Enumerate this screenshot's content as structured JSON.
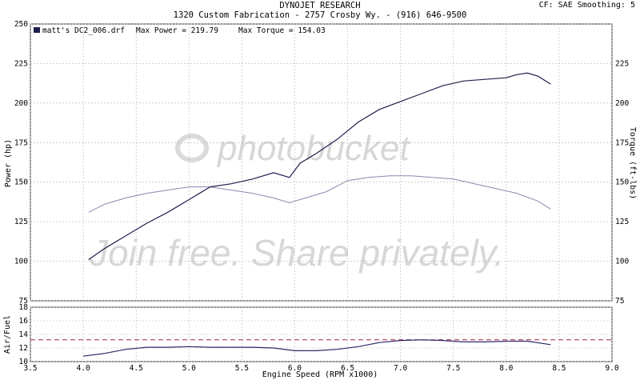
{
  "header": {
    "title": "DYNOJET RESEARCH",
    "subtitle": "1320 Custom Fabrication - 2757 Crosby Wy. - (916) 646-9500",
    "corner": "CF: SAE  Smoothing: 5"
  },
  "legend": {
    "run_name": "matt's DC2_006.drf",
    "max_power": "Max Power = 219.79",
    "max_torque": "Max Torque = 154.03"
  },
  "watermark": {
    "brand": "photobucket",
    "slogan": "Join free. Share privately."
  },
  "colors": {
    "power": "#1f1f4d",
    "torque": "#8888b0",
    "afr": "#2a2a6a",
    "afr_ref": "#a02040",
    "grid": "#b8b8b8",
    "panel_border": "#333333"
  },
  "chart_data": [
    {
      "type": "line",
      "xlabel": "",
      "ylabel": "Power (hp)",
      "ylabel_right": "Torque (ft-lbs)",
      "xlim": [
        3.5,
        9.0
      ],
      "ylim": [
        75,
        250
      ],
      "xticks": [],
      "yticks": [
        "75",
        "100",
        "125",
        "150",
        "175",
        "200",
        "225",
        "250"
      ],
      "yticks_right": [
        "75",
        "100",
        "125",
        "150",
        "175",
        "200",
        "225"
      ],
      "grid": true,
      "series": [
        {
          "name": "Power",
          "x": [
            4.05,
            4.2,
            4.4,
            4.6,
            4.8,
            5.0,
            5.2,
            5.4,
            5.6,
            5.8,
            5.95,
            6.05,
            6.2,
            6.4,
            6.6,
            6.8,
            7.0,
            7.2,
            7.4,
            7.6,
            7.8,
            8.0,
            8.1,
            8.2,
            8.3,
            8.42
          ],
          "y": [
            101,
            108,
            116,
            124,
            131,
            139,
            147,
            149,
            152,
            156,
            153,
            162,
            168,
            177,
            188,
            196,
            201,
            206,
            211,
            214,
            215,
            216,
            218,
            219,
            217,
            212
          ]
        },
        {
          "name": "Torque",
          "x": [
            4.05,
            4.2,
            4.4,
            4.6,
            4.8,
            5.0,
            5.2,
            5.4,
            5.6,
            5.8,
            5.95,
            6.1,
            6.3,
            6.5,
            6.7,
            6.9,
            7.1,
            7.3,
            7.5,
            7.7,
            7.9,
            8.1,
            8.3,
            8.42
          ],
          "y": [
            131,
            136,
            140,
            143,
            145,
            147,
            147,
            145,
            143,
            140,
            137,
            140,
            144,
            151,
            153,
            154,
            154,
            153,
            152,
            149,
            146,
            143,
            138,
            133
          ]
        }
      ]
    },
    {
      "type": "line",
      "xlabel": "Engine Speed (RPM x1000)",
      "ylabel": "Air/Fuel",
      "xlim": [
        3.5,
        9.0
      ],
      "ylim": [
        10,
        18
      ],
      "xticks": [
        "3.5",
        "4.0",
        "4.5",
        "5.0",
        "5.5",
        "6.0",
        "6.5",
        "7.0",
        "7.5",
        "8.0",
        "8.5",
        "9.0"
      ],
      "yticks": [
        "10",
        "12",
        "14",
        "16",
        "18"
      ],
      "grid": true,
      "series": [
        {
          "name": "Air/Fuel",
          "x": [
            4.0,
            4.2,
            4.4,
            4.6,
            4.8,
            5.0,
            5.2,
            5.4,
            5.6,
            5.8,
            6.0,
            6.2,
            6.4,
            6.6,
            6.8,
            7.0,
            7.2,
            7.4,
            7.6,
            7.8,
            8.0,
            8.2,
            8.42
          ],
          "y": [
            10.8,
            11.2,
            11.8,
            12.1,
            12.1,
            12.2,
            12.1,
            12.1,
            12.1,
            12.0,
            11.6,
            11.6,
            11.8,
            12.2,
            12.8,
            13.1,
            13.2,
            13.1,
            12.9,
            12.9,
            13.0,
            13.0,
            12.5
          ]
        },
        {
          "name": "Reference",
          "x": [
            3.5,
            9.0
          ],
          "y": [
            13.2,
            13.2
          ]
        }
      ]
    }
  ]
}
